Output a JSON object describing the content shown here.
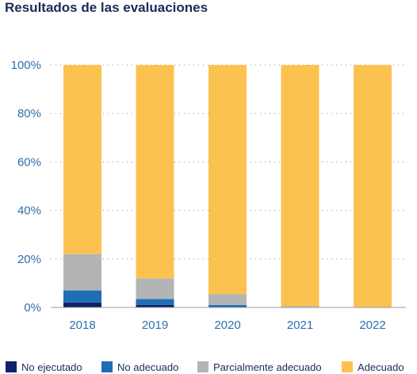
{
  "chart_data": {
    "type": "bar",
    "stacked": true,
    "title": "Resultados de las evaluaciones",
    "xlabel": "",
    "ylabel": "",
    "categories": [
      "2018",
      "2019",
      "2020",
      "2021",
      "2022"
    ],
    "ylim": [
      0,
      100
    ],
    "yticks": [
      0,
      20,
      40,
      60,
      80,
      100
    ],
    "ytick_labels": [
      "0%",
      "20%",
      "40%",
      "60%",
      "80%",
      "100%"
    ],
    "grid": "horizontal dotted",
    "legend_position": "bottom",
    "series": [
      {
        "name": "No ejecutado",
        "color": "#0f2167",
        "values": [
          2,
          1,
          0,
          0,
          0
        ]
      },
      {
        "name": "No adecuado",
        "color": "#1f6db5",
        "values": [
          5,
          2.5,
          1,
          0,
          0
        ]
      },
      {
        "name": "Parcialmente adecuado",
        "color": "#b3b4b6",
        "values": [
          15,
          8.5,
          4.5,
          0.5,
          0
        ]
      },
      {
        "name": "Adecuado",
        "color": "#fcc24f",
        "values": [
          78,
          88,
          94.5,
          99.5,
          100
        ]
      }
    ]
  }
}
